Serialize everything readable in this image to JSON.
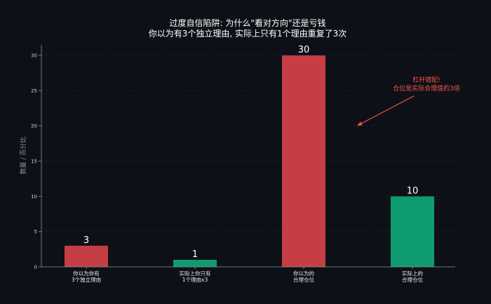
{
  "chart_data": {
    "type": "bar",
    "title_line1": "过度自信陷阱: 为什么\"看对方向\"还是亏钱",
    "title_line2": "你以为有3个独立理由, 实际上只有1个理由重复了3次",
    "ylabel": "数量 / 百分比",
    "ylim": [
      0,
      31.5
    ],
    "yticks": [
      0,
      5,
      10,
      15,
      20,
      25,
      30
    ],
    "grid": true,
    "categories": [
      [
        "你以为你有",
        "3个独立理由"
      ],
      [
        "实际上你只有",
        "1个理由x3"
      ],
      [
        "你以为的",
        "合理仓位"
      ],
      [
        "实际上的",
        "合理仓位"
      ]
    ],
    "values": [
      3,
      1,
      30,
      10
    ],
    "colors": [
      "#c53e43",
      "#0f9b70",
      "#c53e43",
      "#0f9b70"
    ],
    "annotation": {
      "lines": [
        "杠杆错配!",
        "仓位是实际合理值的3倍"
      ],
      "color": "#f85149"
    }
  }
}
